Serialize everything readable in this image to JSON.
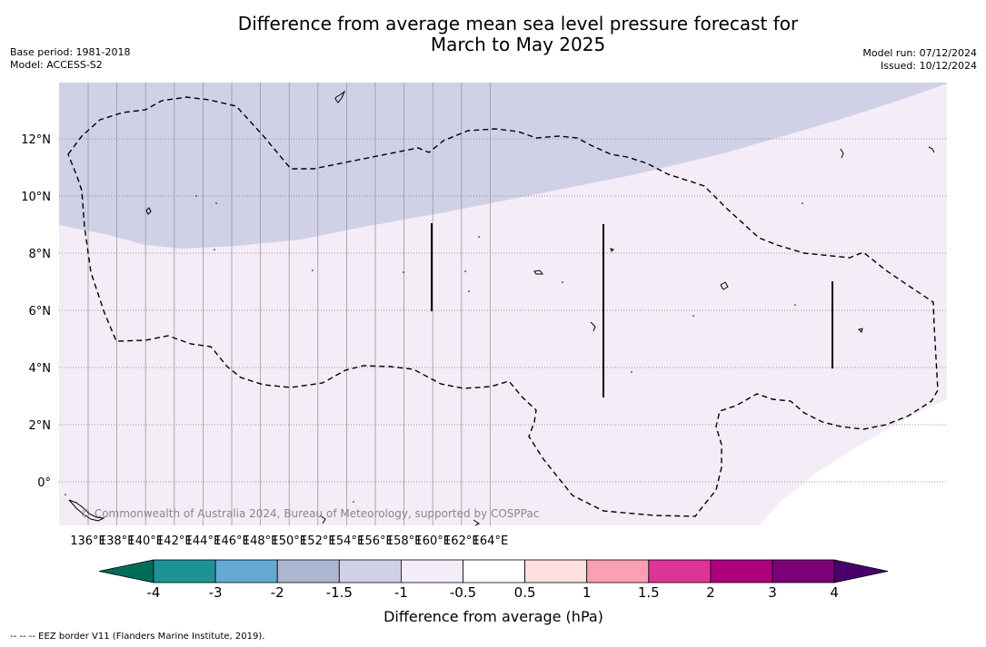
{
  "header": {
    "title_line1": "Difference from average mean sea level pressure forecast for",
    "title_line2": "March to May 2025",
    "base_period": "Base period: 1981-2018",
    "model": "Model: ACCESS-S2",
    "model_run": "Model run: 07/12/2024",
    "issued": "Issued: 10/12/2024"
  },
  "map": {
    "lon_ticks": [
      "136°E",
      "138°E",
      "140°E",
      "142°E",
      "144°E",
      "146°E",
      "148°E",
      "150°E",
      "152°E",
      "154°E",
      "156°E",
      "158°E",
      "160°E",
      "162°E",
      "164°E"
    ],
    "lat_ticks": [
      "12°N",
      "10°N",
      "8°N",
      "6°N",
      "4°N",
      "2°N",
      "0°"
    ],
    "copyright": "© Commonwealth of Australia 2024, Bureau of Meteorology, supported by COSPPac",
    "fill_colors": {
      "band_-1.5_-1": "#d0d1e6",
      "band_-1_-0.5": "#f4ecf6",
      "band_-0.5_0.5": "#ffffff"
    }
  },
  "colorbar": {
    "label": "Difference from average (hPa)",
    "tick_labels": [
      "-4",
      "-3",
      "-2",
      "-1.5",
      "-1",
      "-0.5",
      "0.5",
      "1",
      "1.5",
      "2",
      "3",
      "4"
    ],
    "colors": [
      "#1d9396",
      "#65a8d4",
      "#adb6d0",
      "#d0d1e6",
      "#f4ecf6",
      "#ffffff",
      "#fde0dd",
      "#fa9fb5",
      "#dd3497",
      "#ae017e",
      "#7a0177"
    ],
    "under_color": "#016c59",
    "over_color": "#49006a"
  },
  "footer": {
    "legend_note": "--  --  -- EEZ border V11 (Flanders Marine Institute, 2019)."
  }
}
